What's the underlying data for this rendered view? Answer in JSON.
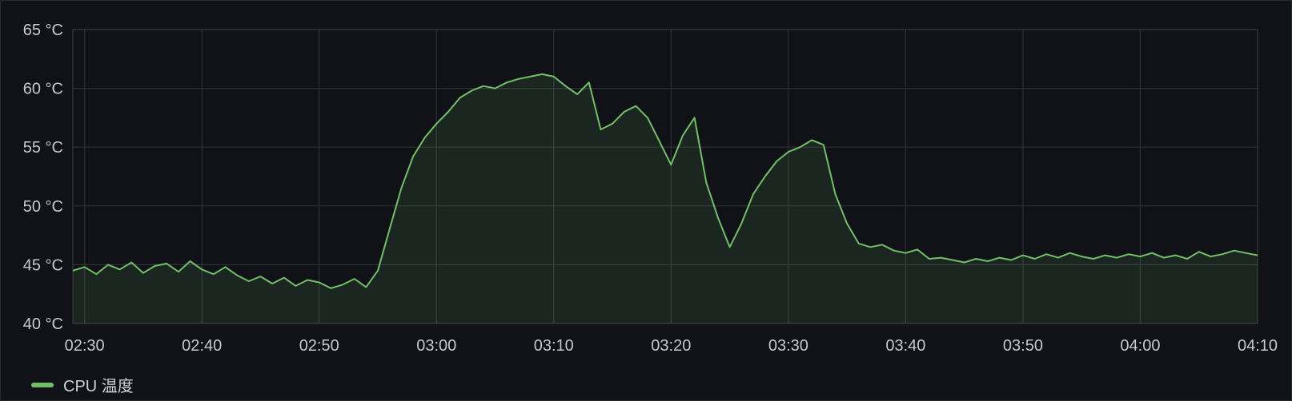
{
  "chart_data": {
    "type": "area",
    "ylabel": "",
    "xlabel": "",
    "y_unit": "°C",
    "ylim": [
      40,
      65
    ],
    "y_ticks": [
      "40 °C",
      "45 °C",
      "50 °C",
      "55 °C",
      "60 °C",
      "65 °C"
    ],
    "x_ticks": [
      "02:30",
      "02:40",
      "02:50",
      "03:00",
      "03:10",
      "03:20",
      "03:30",
      "03:40",
      "03:50",
      "04:00",
      "04:10"
    ],
    "xlim": [
      "02:29",
      "04:10"
    ],
    "grid": true,
    "legend_position": "bottom-left",
    "series": [
      {
        "name": "CPU 温度",
        "color": "#73bf69",
        "x": [
          "02:29",
          "02:30",
          "02:31",
          "02:32",
          "02:33",
          "02:34",
          "02:35",
          "02:36",
          "02:37",
          "02:38",
          "02:39",
          "02:40",
          "02:41",
          "02:42",
          "02:43",
          "02:44",
          "02:45",
          "02:46",
          "02:47",
          "02:48",
          "02:49",
          "02:50",
          "02:51",
          "02:52",
          "02:53",
          "02:54",
          "02:55",
          "02:56",
          "02:57",
          "02:58",
          "02:59",
          "03:00",
          "03:01",
          "03:02",
          "03:03",
          "03:04",
          "03:05",
          "03:06",
          "03:07",
          "03:08",
          "03:09",
          "03:10",
          "03:11",
          "03:12",
          "03:13",
          "03:14",
          "03:15",
          "03:16",
          "03:17",
          "03:18",
          "03:19",
          "03:20",
          "03:21",
          "03:22",
          "03:23",
          "03:24",
          "03:25",
          "03:26",
          "03:27",
          "03:28",
          "03:29",
          "03:30",
          "03:31",
          "03:32",
          "03:33",
          "03:34",
          "03:35",
          "03:36",
          "03:37",
          "03:38",
          "03:39",
          "03:40",
          "03:41",
          "03:42",
          "03:43",
          "03:44",
          "03:45",
          "03:46",
          "03:47",
          "03:48",
          "03:49",
          "03:50",
          "03:51",
          "03:52",
          "03:53",
          "03:54",
          "03:55",
          "03:56",
          "03:57",
          "03:58",
          "03:59",
          "04:00",
          "04:01",
          "04:02",
          "04:03",
          "04:04",
          "04:05",
          "04:06",
          "04:07",
          "04:08",
          "04:09",
          "04:10"
        ],
        "values": [
          44.5,
          44.8,
          44.2,
          45.0,
          44.6,
          45.2,
          44.3,
          44.9,
          45.1,
          44.4,
          45.3,
          44.6,
          44.2,
          44.8,
          44.1,
          43.6,
          44.0,
          43.4,
          43.9,
          43.2,
          43.7,
          43.5,
          43.0,
          43.3,
          43.8,
          43.1,
          44.5,
          48.0,
          51.5,
          54.2,
          55.8,
          57.0,
          58.0,
          59.2,
          59.8,
          60.2,
          60.0,
          60.5,
          60.8,
          61.0,
          61.2,
          61.0,
          60.2,
          59.5,
          60.5,
          56.5,
          57.0,
          58.0,
          58.5,
          57.5,
          55.5,
          53.5,
          56.0,
          57.5,
          52.0,
          49.0,
          46.5,
          48.5,
          51.0,
          52.5,
          53.8,
          54.6,
          55.0,
          55.6,
          55.2,
          51.0,
          48.5,
          46.8,
          46.5,
          46.7,
          46.2,
          46.0,
          46.3,
          45.5,
          45.6,
          45.4,
          45.2,
          45.5,
          45.3,
          45.6,
          45.4,
          45.8,
          45.5,
          45.9,
          45.6,
          46.0,
          45.7,
          45.5,
          45.8,
          45.6,
          45.9,
          45.7,
          46.0,
          45.6,
          45.8,
          45.5,
          46.1,
          45.7,
          45.9,
          46.2,
          46.0,
          45.8
        ]
      }
    ]
  }
}
